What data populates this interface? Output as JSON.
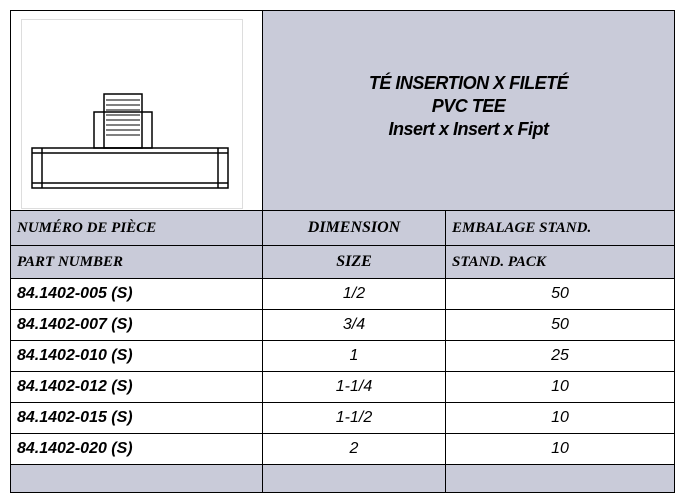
{
  "header": {
    "title": [
      "TÉ INSERTION X FILETÉ",
      "PVC TEE",
      "Insert x Insert x Fipt"
    ]
  },
  "table": {
    "header_rows": [
      [
        "NUMÉRO DE PIÈCE",
        "DIMENSION",
        "EMBALAGE STAND."
      ],
      [
        "PART NUMBER",
        "SIZE",
        "STAND. PACK"
      ]
    ],
    "rows": [
      [
        "84.1402-005 (S)",
        "1/2",
        "50"
      ],
      [
        "84.1402-007 (S)",
        "3/4",
        "50"
      ],
      [
        "84.1402-010 (S)",
        "1",
        "25"
      ],
      [
        "84.1402-012 (S)",
        "1-1/4",
        "10"
      ],
      [
        "84.1402-015 (S)",
        "1-1/2",
        "10"
      ],
      [
        "84.1402-020 (S)",
        "2",
        "10"
      ]
    ]
  }
}
